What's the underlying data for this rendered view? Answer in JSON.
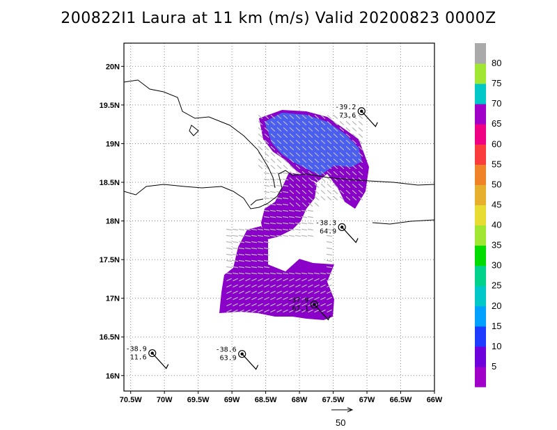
{
  "title": "200822I1 Laura at 11 km (m/s) Valid 20200823 0000Z",
  "map": {
    "lon_range": [
      -70.6,
      -66.0
    ],
    "lat_range": [
      15.8,
      20.3
    ],
    "lon_ticks": [
      {
        "value": -70.5,
        "label": "70.5W"
      },
      {
        "value": -70.0,
        "label": "70W"
      },
      {
        "value": -69.5,
        "label": "69.5W"
      },
      {
        "value": -69.0,
        "label": "69W"
      },
      {
        "value": -68.5,
        "label": "68.5W"
      },
      {
        "value": -68.0,
        "label": "68W"
      },
      {
        "value": -67.5,
        "label": "67.5W"
      },
      {
        "value": -67.0,
        "label": "67W"
      },
      {
        "value": -66.5,
        "label": "66.5W"
      },
      {
        "value": -66.0,
        "label": "66W"
      }
    ],
    "lat_ticks": [
      {
        "value": 16.0,
        "label": "16N"
      },
      {
        "value": 16.5,
        "label": "16.5N"
      },
      {
        "value": 17.0,
        "label": "17N"
      },
      {
        "value": 17.5,
        "label": "17.5N"
      },
      {
        "value": 18.0,
        "label": "18N"
      },
      {
        "value": 18.5,
        "label": "18.5N"
      },
      {
        "value": 19.0,
        "label": "19N"
      },
      {
        "value": 19.5,
        "label": "19.5N"
      },
      {
        "value": 20.0,
        "label": "20N"
      }
    ],
    "grid": "dotted"
  },
  "stations": [
    {
      "lon": -67.08,
      "lat": 19.42,
      "temp": "-39.2",
      "value": "73.6"
    },
    {
      "lon": -67.37,
      "lat": 17.92,
      "temp": "-38.3",
      "value": "64.9"
    },
    {
      "lon": -67.78,
      "lat": 16.92,
      "temp": "-37.9",
      "value": "67.1"
    },
    {
      "lon": -70.18,
      "lat": 16.29,
      "temp": "-38.9",
      "value": "11.6"
    },
    {
      "lon": -68.85,
      "lat": 16.28,
      "temp": "-38.6",
      "value": "63.9"
    }
  ],
  "colorbar": {
    "colors": [
      "#a000c8",
      "#6e00dc",
      "#1e3cff",
      "#00a0ff",
      "#00c8c8",
      "#00d28c",
      "#00dc00",
      "#a0e632",
      "#e6dc32",
      "#e6af2d",
      "#f08228",
      "#fa3c3c",
      "#f00082",
      "#a000c8",
      "#00c8c8",
      "#a0e632",
      "#aaaaaa"
    ],
    "labels": [
      "5",
      "10",
      "15",
      "20",
      "25",
      "30",
      "35",
      "40",
      "45",
      "50",
      "55",
      "60",
      "65",
      "70",
      "75",
      "80"
    ]
  },
  "vector_scale_label": "50"
}
